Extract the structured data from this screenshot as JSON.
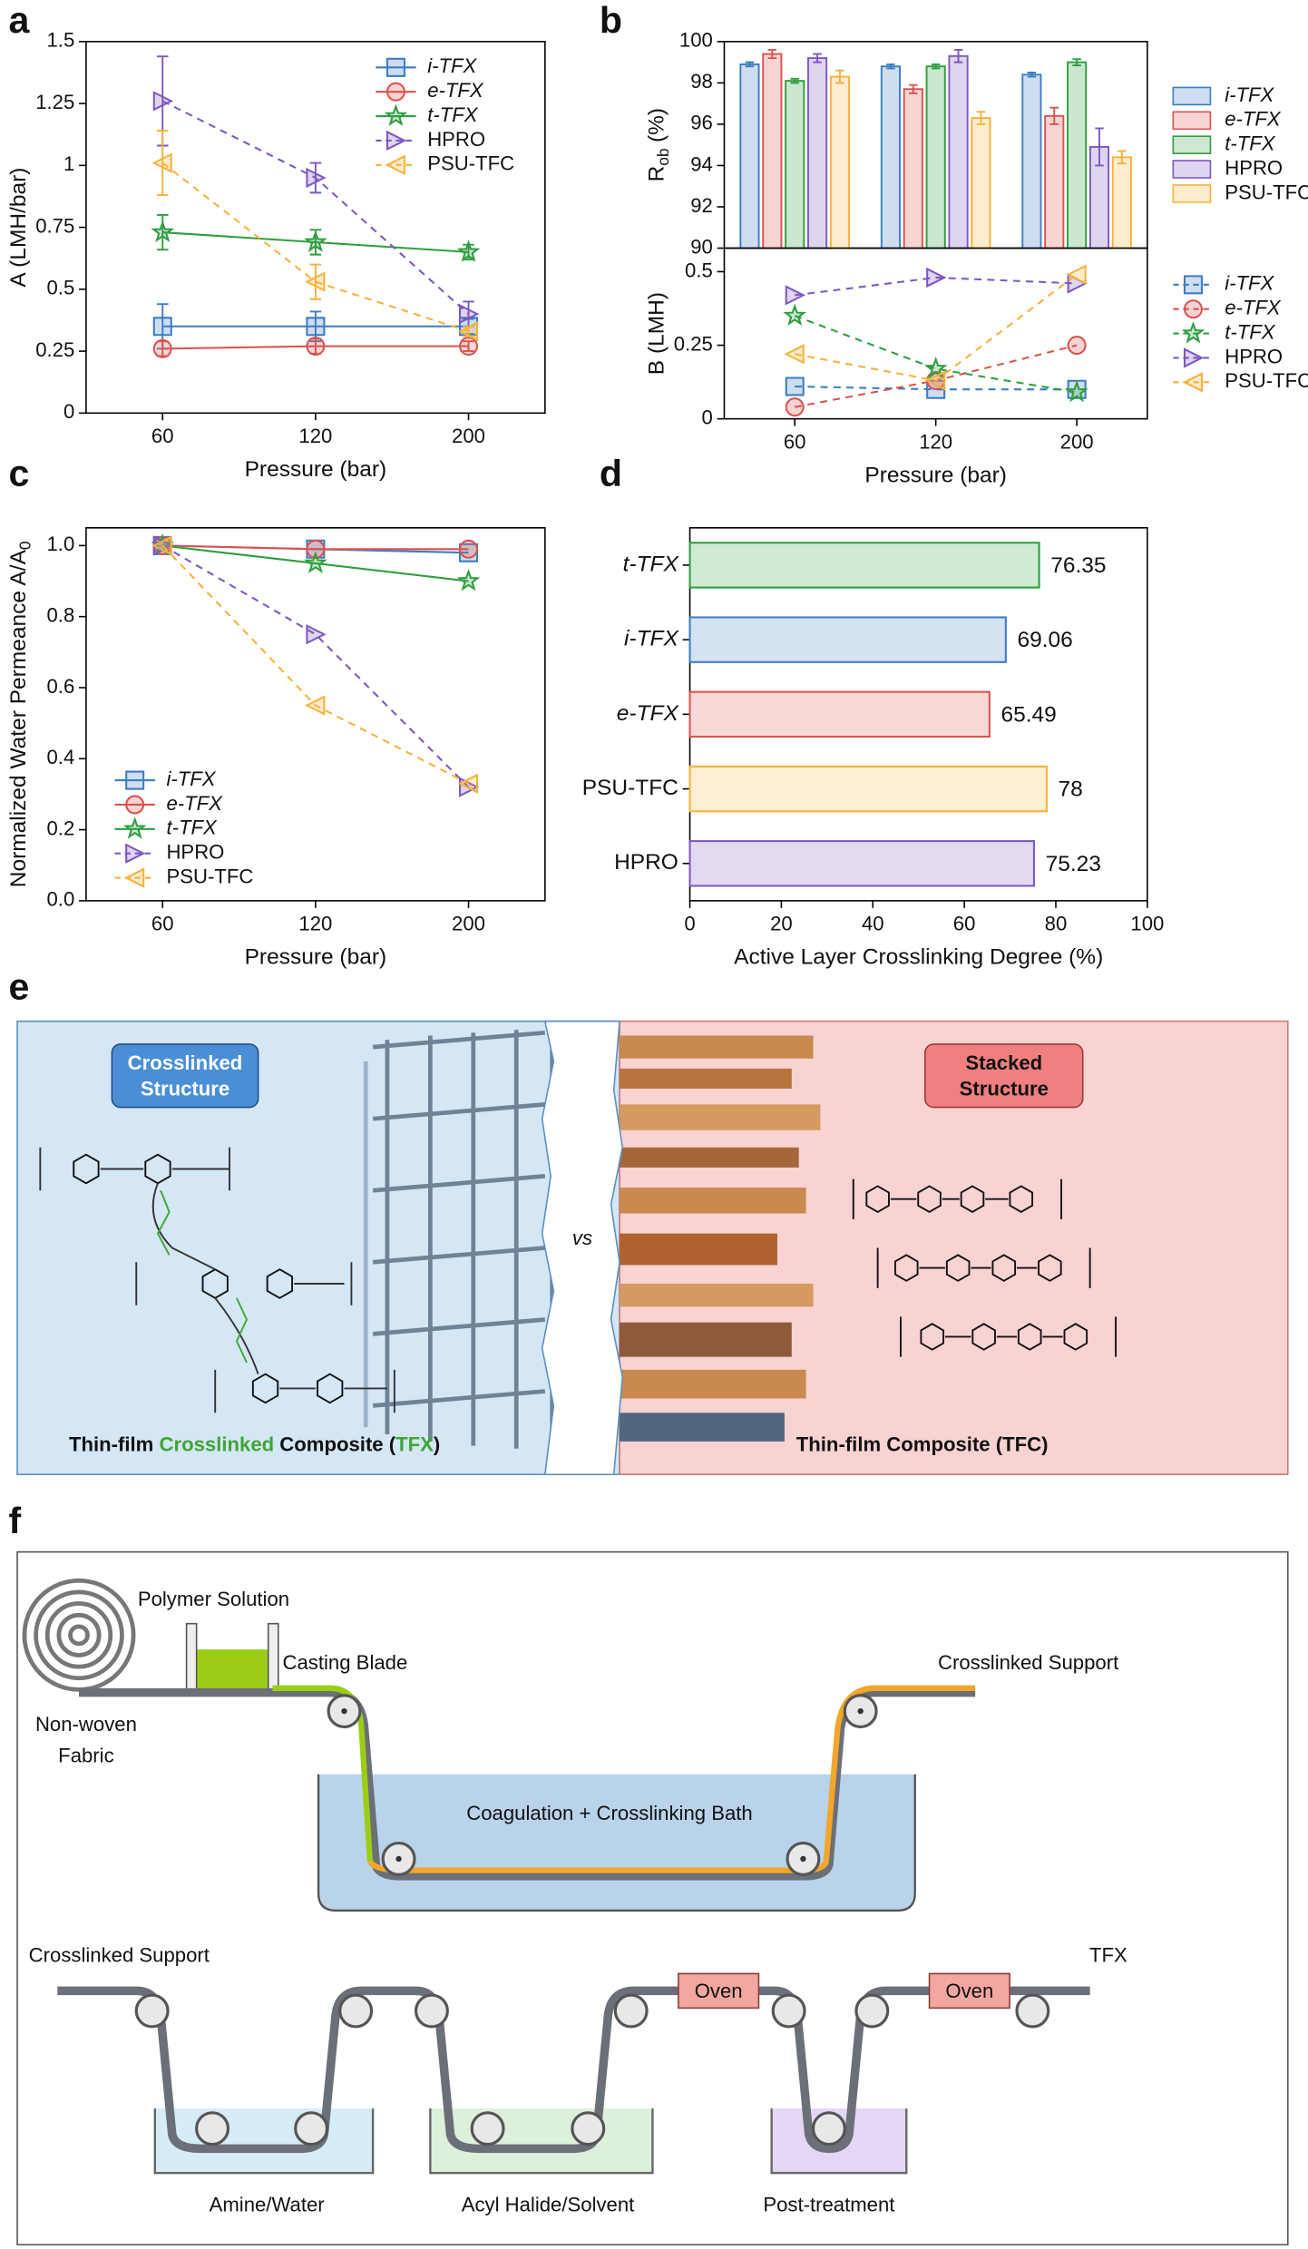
{
  "panel_labels": [
    "a",
    "b",
    "c",
    "d",
    "e",
    "f"
  ],
  "chart_data": [
    {
      "type": "line",
      "ylabel": [
        "A (LMH/bar)"
      ],
      "xlabel": "Pressure (bar)",
      "categories": [
        "60",
        "120",
        "200"
      ],
      "ylim": [
        0,
        1.5
      ],
      "yticks": [
        0,
        0.25,
        0.5,
        0.75,
        1,
        1.25,
        1.5
      ],
      "legend": "upper right",
      "series": [
        {
          "name": "i-TFX",
          "italic": true,
          "color": "#3b7dc4",
          "marker": "square",
          "dash": false,
          "values": [
            0.35,
            0.35,
            0.35
          ],
          "errors": [
            0.09,
            0.06,
            0.03
          ]
        },
        {
          "name": "e-TFX",
          "italic": true,
          "color": "#d9534f",
          "marker": "circle",
          "dash": false,
          "values": [
            0.26,
            0.27,
            0.27
          ],
          "errors": [
            0.03,
            0.03,
            0.02
          ]
        },
        {
          "name": "t-TFX",
          "italic": true,
          "color": "#2e9e3e",
          "marker": "star",
          "dash": false,
          "values": [
            0.73,
            0.69,
            0.65
          ],
          "errors": [
            0.07,
            0.05,
            0.03
          ]
        },
        {
          "name": "HPRO",
          "italic": false,
          "color": "#7e57c2",
          "marker": "tri-right",
          "dash": true,
          "values": [
            1.26,
            0.95,
            0.4
          ],
          "errors": [
            0.18,
            0.06,
            0.05
          ]
        },
        {
          "name": "PSU-TFC",
          "italic": false,
          "color": "#f6b23c",
          "marker": "tri-left",
          "dash": true,
          "values": [
            1.01,
            0.53,
            0.33
          ],
          "errors": [
            0.13,
            0.07,
            0.02
          ]
        }
      ]
    },
    {
      "type": "bar",
      "ylabel": [
        "R",
        "ob",
        "(%)"
      ],
      "ylim": [
        90,
        100
      ],
      "yticks": [
        90,
        92,
        94,
        96,
        98,
        100
      ],
      "legend": "outside right",
      "series": [
        {
          "name": "i-TFX",
          "italic": true,
          "color": "#3b7dc4",
          "values": [
            98.9,
            98.8,
            98.4
          ],
          "errors": [
            0.1,
            0.1,
            0.1
          ]
        },
        {
          "name": "e-TFX",
          "italic": true,
          "color": "#d9534f",
          "values": [
            99.4,
            97.7,
            96.4
          ],
          "errors": [
            0.2,
            0.2,
            0.4
          ]
        },
        {
          "name": "t-TFX",
          "italic": true,
          "color": "#2e9e3e",
          "values": [
            98.1,
            98.8,
            99
          ],
          "errors": [
            0.1,
            0.1,
            0.15
          ]
        },
        {
          "name": "HPRO",
          "italic": false,
          "color": "#7e57c2",
          "values": [
            99.2,
            99.3,
            94.9
          ],
          "errors": [
            0.2,
            0.3,
            0.9
          ]
        },
        {
          "name": "PSU-TFC",
          "italic": false,
          "color": "#f6b23c",
          "values": [
            98.3,
            96.3,
            94.4
          ],
          "errors": [
            0.3,
            0.3,
            0.3
          ]
        }
      ]
    },
    {
      "type": "line",
      "ylabel": [
        "B (LMH)"
      ],
      "xlabel": "Pressure (bar)",
      "categories": [
        "60",
        "120",
        "200"
      ],
      "ylim": [
        0,
        0.58
      ],
      "yticks": [
        0,
        0.25,
        0.5
      ],
      "legend": "outside right",
      "series": [
        {
          "name": "i-TFX",
          "italic": true,
          "color": "#3b7dc4",
          "marker": "square",
          "dash": true,
          "values": [
            0.11,
            0.1,
            0.1
          ]
        },
        {
          "name": "e-TFX",
          "italic": true,
          "color": "#d9534f",
          "marker": "circle",
          "dash": true,
          "values": [
            0.04,
            0.13,
            0.25
          ]
        },
        {
          "name": "t-TFX",
          "italic": true,
          "color": "#2e9e3e",
          "marker": "star",
          "dash": true,
          "values": [
            0.35,
            0.17,
            0.09
          ]
        },
        {
          "name": "HPRO",
          "italic": false,
          "color": "#7e57c2",
          "marker": "tri-right",
          "dash": true,
          "values": [
            0.42,
            0.48,
            0.46
          ]
        },
        {
          "name": "PSU-TFC",
          "italic": false,
          "color": "#f6b23c",
          "marker": "tri-left",
          "dash": true,
          "values": [
            0.22,
            0.13,
            0.49
          ]
        }
      ]
    },
    {
      "type": "line",
      "ylabel": [
        "Normalized Water Permeance A/A",
        "0"
      ],
      "xlabel": "Pressure (bar)",
      "categories": [
        "60",
        "120",
        "200"
      ],
      "ylim": [
        0,
        1.05
      ],
      "yticks": [
        {
          "value": 0,
          "label": "0.0"
        },
        0.2,
        0.4,
        0.6,
        0.8,
        {
          "value": 1,
          "label": "1.0"
        }
      ],
      "legend": "lower left",
      "series": [
        {
          "name": "i-TFX",
          "italic": true,
          "color": "#3b7dc4",
          "marker": "square",
          "dash": false,
          "values": [
            1,
            0.99,
            0.98
          ]
        },
        {
          "name": "e-TFX",
          "italic": true,
          "color": "#d9534f",
          "marker": "circle",
          "dash": false,
          "values": [
            1,
            0.99,
            0.99
          ]
        },
        {
          "name": "t-TFX",
          "italic": true,
          "color": "#2e9e3e",
          "marker": "star",
          "dash": false,
          "values": [
            1,
            0.95,
            0.9
          ]
        },
        {
          "name": "HPRO",
          "italic": false,
          "color": "#7e57c2",
          "marker": "tri-right",
          "dash": true,
          "values": [
            1,
            0.75,
            0.32
          ]
        },
        {
          "name": "PSU-TFC",
          "italic": false,
          "color": "#f6b23c",
          "marker": "tri-left",
          "dash": true,
          "values": [
            1,
            0.55,
            0.33
          ]
        }
      ]
    },
    {
      "type": "hbar",
      "xlabel": "Active Layer Crosslinking Degree (%)",
      "categories": [
        "t-TFX",
        "i-TFX",
        "e-TFX",
        "PSU-TFC",
        "HPRO"
      ],
      "category_italic": [
        true,
        true,
        true,
        false,
        false
      ],
      "values": [
        76.35,
        69.06,
        65.49,
        78,
        75.23
      ],
      "colors": [
        "#2e9e3e",
        "#3b7dc4",
        "#d9534f",
        "#f6b23c",
        "#7e57c2"
      ],
      "xlim": [
        0,
        100
      ],
      "xticks": [
        0,
        20,
        40,
        60,
        80,
        100
      ]
    }
  ],
  "panel_e": {
    "left_badge": [
      "Crosslinked",
      "Structure"
    ],
    "right_badge": [
      "Stacked",
      "Structure"
    ],
    "vs": "vs",
    "left_caption": [
      "Thin-film ",
      "Crosslinked",
      " Composite (",
      "TFX",
      ")"
    ],
    "right_caption": "Thin-film Composite (TFC)"
  },
  "panel_f": {
    "polymer": "Polymer Solution",
    "blade": "Casting Blade",
    "fabric": [
      "Non-woven",
      "Fabric"
    ],
    "support_top": "Crosslinked Support",
    "bath": "Coagulation + Crosslinking Bath",
    "support_bottom": "Crosslinked Support",
    "product": "TFX",
    "ovens": [
      "Oven",
      "Oven"
    ],
    "baths": [
      "Amine/Water",
      "Acyl Halide/Solvent",
      "Post-treatment"
    ]
  }
}
